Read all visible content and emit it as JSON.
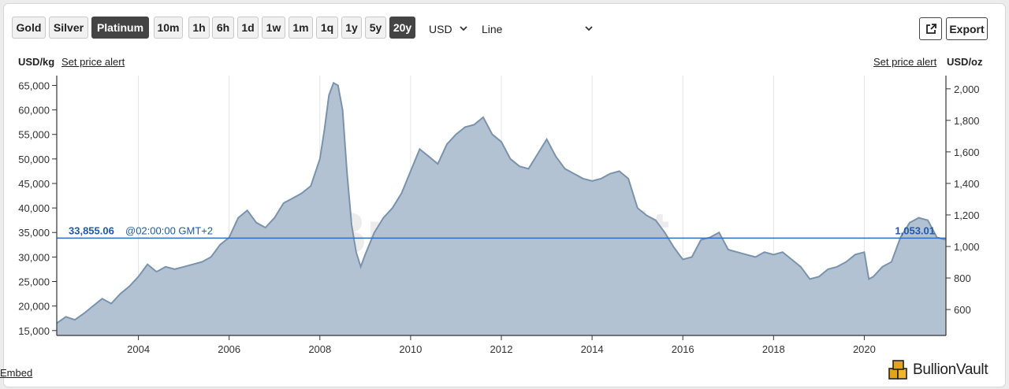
{
  "toolbar": {
    "metals": [
      {
        "label": "Gold",
        "active": false
      },
      {
        "label": "Silver",
        "active": false
      },
      {
        "label": "Platinum",
        "active": true
      }
    ],
    "ranges": [
      {
        "label": "10m",
        "active": false
      },
      {
        "label": "1h",
        "active": false
      },
      {
        "label": "6h",
        "active": false
      },
      {
        "label": "1d",
        "active": false
      },
      {
        "label": "1w",
        "active": false
      },
      {
        "label": "1m",
        "active": false
      },
      {
        "label": "1q",
        "active": false
      },
      {
        "label": "1y",
        "active": false
      },
      {
        "label": "5y",
        "active": false
      },
      {
        "label": "20y",
        "active": true
      }
    ],
    "currency": "USD",
    "chart_style": "Line",
    "export_label": "Export",
    "open_icon": "external-link-icon"
  },
  "left_unit": "USD/kg",
  "right_unit": "USD/oz",
  "alert_left": "Set price alert",
  "alert_right": "Set price alert",
  "embed_label": "Embed",
  "brand": "BullionVault",
  "watermark": "BullionVault",
  "colors": {
    "fill": "#b2c2d3",
    "line": "#7a93ad",
    "current": "#2f6fc2",
    "current_label": "#1f5aa8",
    "active_button": "#444444"
  },
  "chart_data": {
    "type": "area",
    "current_price": {
      "kg": "33,855.06",
      "time": "@02:00:00 GMT+2",
      "oz": "1,053.01",
      "value_kg": 33855
    },
    "x": {
      "range": [
        2002.2,
        2021.8
      ],
      "tick_values": [
        2004,
        2006,
        2008,
        2010,
        2012,
        2014,
        2016,
        2018,
        2020
      ],
      "tick_labels": [
        "2004",
        "2006",
        "2008",
        "2010",
        "2012",
        "2014",
        "2016",
        "2018",
        "2020"
      ]
    },
    "y_left": {
      "unit": "USD/kg",
      "range": [
        14000,
        67000
      ],
      "tick_values": [
        15000,
        20000,
        25000,
        30000,
        35000,
        40000,
        45000,
        50000,
        55000,
        60000,
        65000
      ],
      "tick_labels": [
        "15,000",
        "20,000",
        "25,000",
        "30,000",
        "35,000",
        "40,000",
        "45,000",
        "50,000",
        "55,000",
        "60,000",
        "65,000"
      ]
    },
    "y_right": {
      "unit": "USD/oz",
      "tick_values": [
        600,
        800,
        1000,
        1200,
        1400,
        1600,
        1800,
        2000
      ],
      "tick_labels": [
        "600",
        "800",
        "1,000",
        "1,200",
        "1,400",
        "1,600",
        "1,800",
        "2,000"
      ]
    },
    "grid": "vertical",
    "series": [
      {
        "x": [
          2002.2,
          2002.4,
          2002.6,
          2002.8,
          2003.0,
          2003.2,
          2003.4,
          2003.6,
          2003.8,
          2004.0,
          2004.2,
          2004.4,
          2004.6,
          2004.8,
          2005.0,
          2005.2,
          2005.4,
          2005.6,
          2005.8,
          2006.0,
          2006.2,
          2006.4,
          2006.6,
          2006.8,
          2007.0,
          2007.2,
          2007.4,
          2007.6,
          2007.8,
          2008.0,
          2008.1,
          2008.2,
          2008.3,
          2008.4,
          2008.5,
          2008.6,
          2008.7,
          2008.8,
          2008.9,
          2009.0,
          2009.2,
          2009.4,
          2009.6,
          2009.8,
          2010.0,
          2010.2,
          2010.4,
          2010.6,
          2010.8,
          2011.0,
          2011.2,
          2011.4,
          2011.6,
          2011.8,
          2012.0,
          2012.2,
          2012.4,
          2012.6,
          2012.8,
          2013.0,
          2013.2,
          2013.4,
          2013.6,
          2013.8,
          2014.0,
          2014.2,
          2014.4,
          2014.6,
          2014.8,
          2015.0,
          2015.2,
          2015.4,
          2015.6,
          2015.8,
          2016.0,
          2016.2,
          2016.4,
          2016.6,
          2016.8,
          2017.0,
          2017.2,
          2017.4,
          2017.6,
          2017.8,
          2018.0,
          2018.2,
          2018.4,
          2018.6,
          2018.8,
          2019.0,
          2019.2,
          2019.4,
          2019.6,
          2019.8,
          2020.0,
          2020.1,
          2020.2,
          2020.4,
          2020.6,
          2020.8,
          2021.0,
          2021.2,
          2021.4,
          2021.6,
          2021.8
        ],
        "y": [
          16500,
          17800,
          17200,
          18500,
          20000,
          21500,
          20500,
          22500,
          24000,
          26000,
          28500,
          27000,
          28000,
          27500,
          28000,
          28500,
          29000,
          30000,
          32500,
          34000,
          38000,
          39500,
          37000,
          36000,
          38000,
          41000,
          42000,
          43000,
          44500,
          50000,
          56000,
          63000,
          65500,
          65000,
          60000,
          47000,
          36500,
          31000,
          28000,
          30500,
          35000,
          38000,
          40000,
          43000,
          47500,
          52000,
          50500,
          49000,
          53000,
          55000,
          56500,
          57000,
          58500,
          55000,
          53500,
          50000,
          48500,
          48000,
          51000,
          54000,
          50500,
          48000,
          47000,
          46000,
          45500,
          46000,
          47000,
          47500,
          46000,
          40000,
          38500,
          37500,
          35000,
          32000,
          29500,
          30000,
          33500,
          34000,
          35000,
          31500,
          31000,
          30500,
          30000,
          31000,
          30500,
          31000,
          29500,
          28000,
          25500,
          26000,
          27500,
          28000,
          29000,
          30500,
          31000,
          25500,
          26000,
          28000,
          29000,
          34000,
          37000,
          38000,
          37500,
          34000,
          33500
        ]
      }
    ]
  }
}
